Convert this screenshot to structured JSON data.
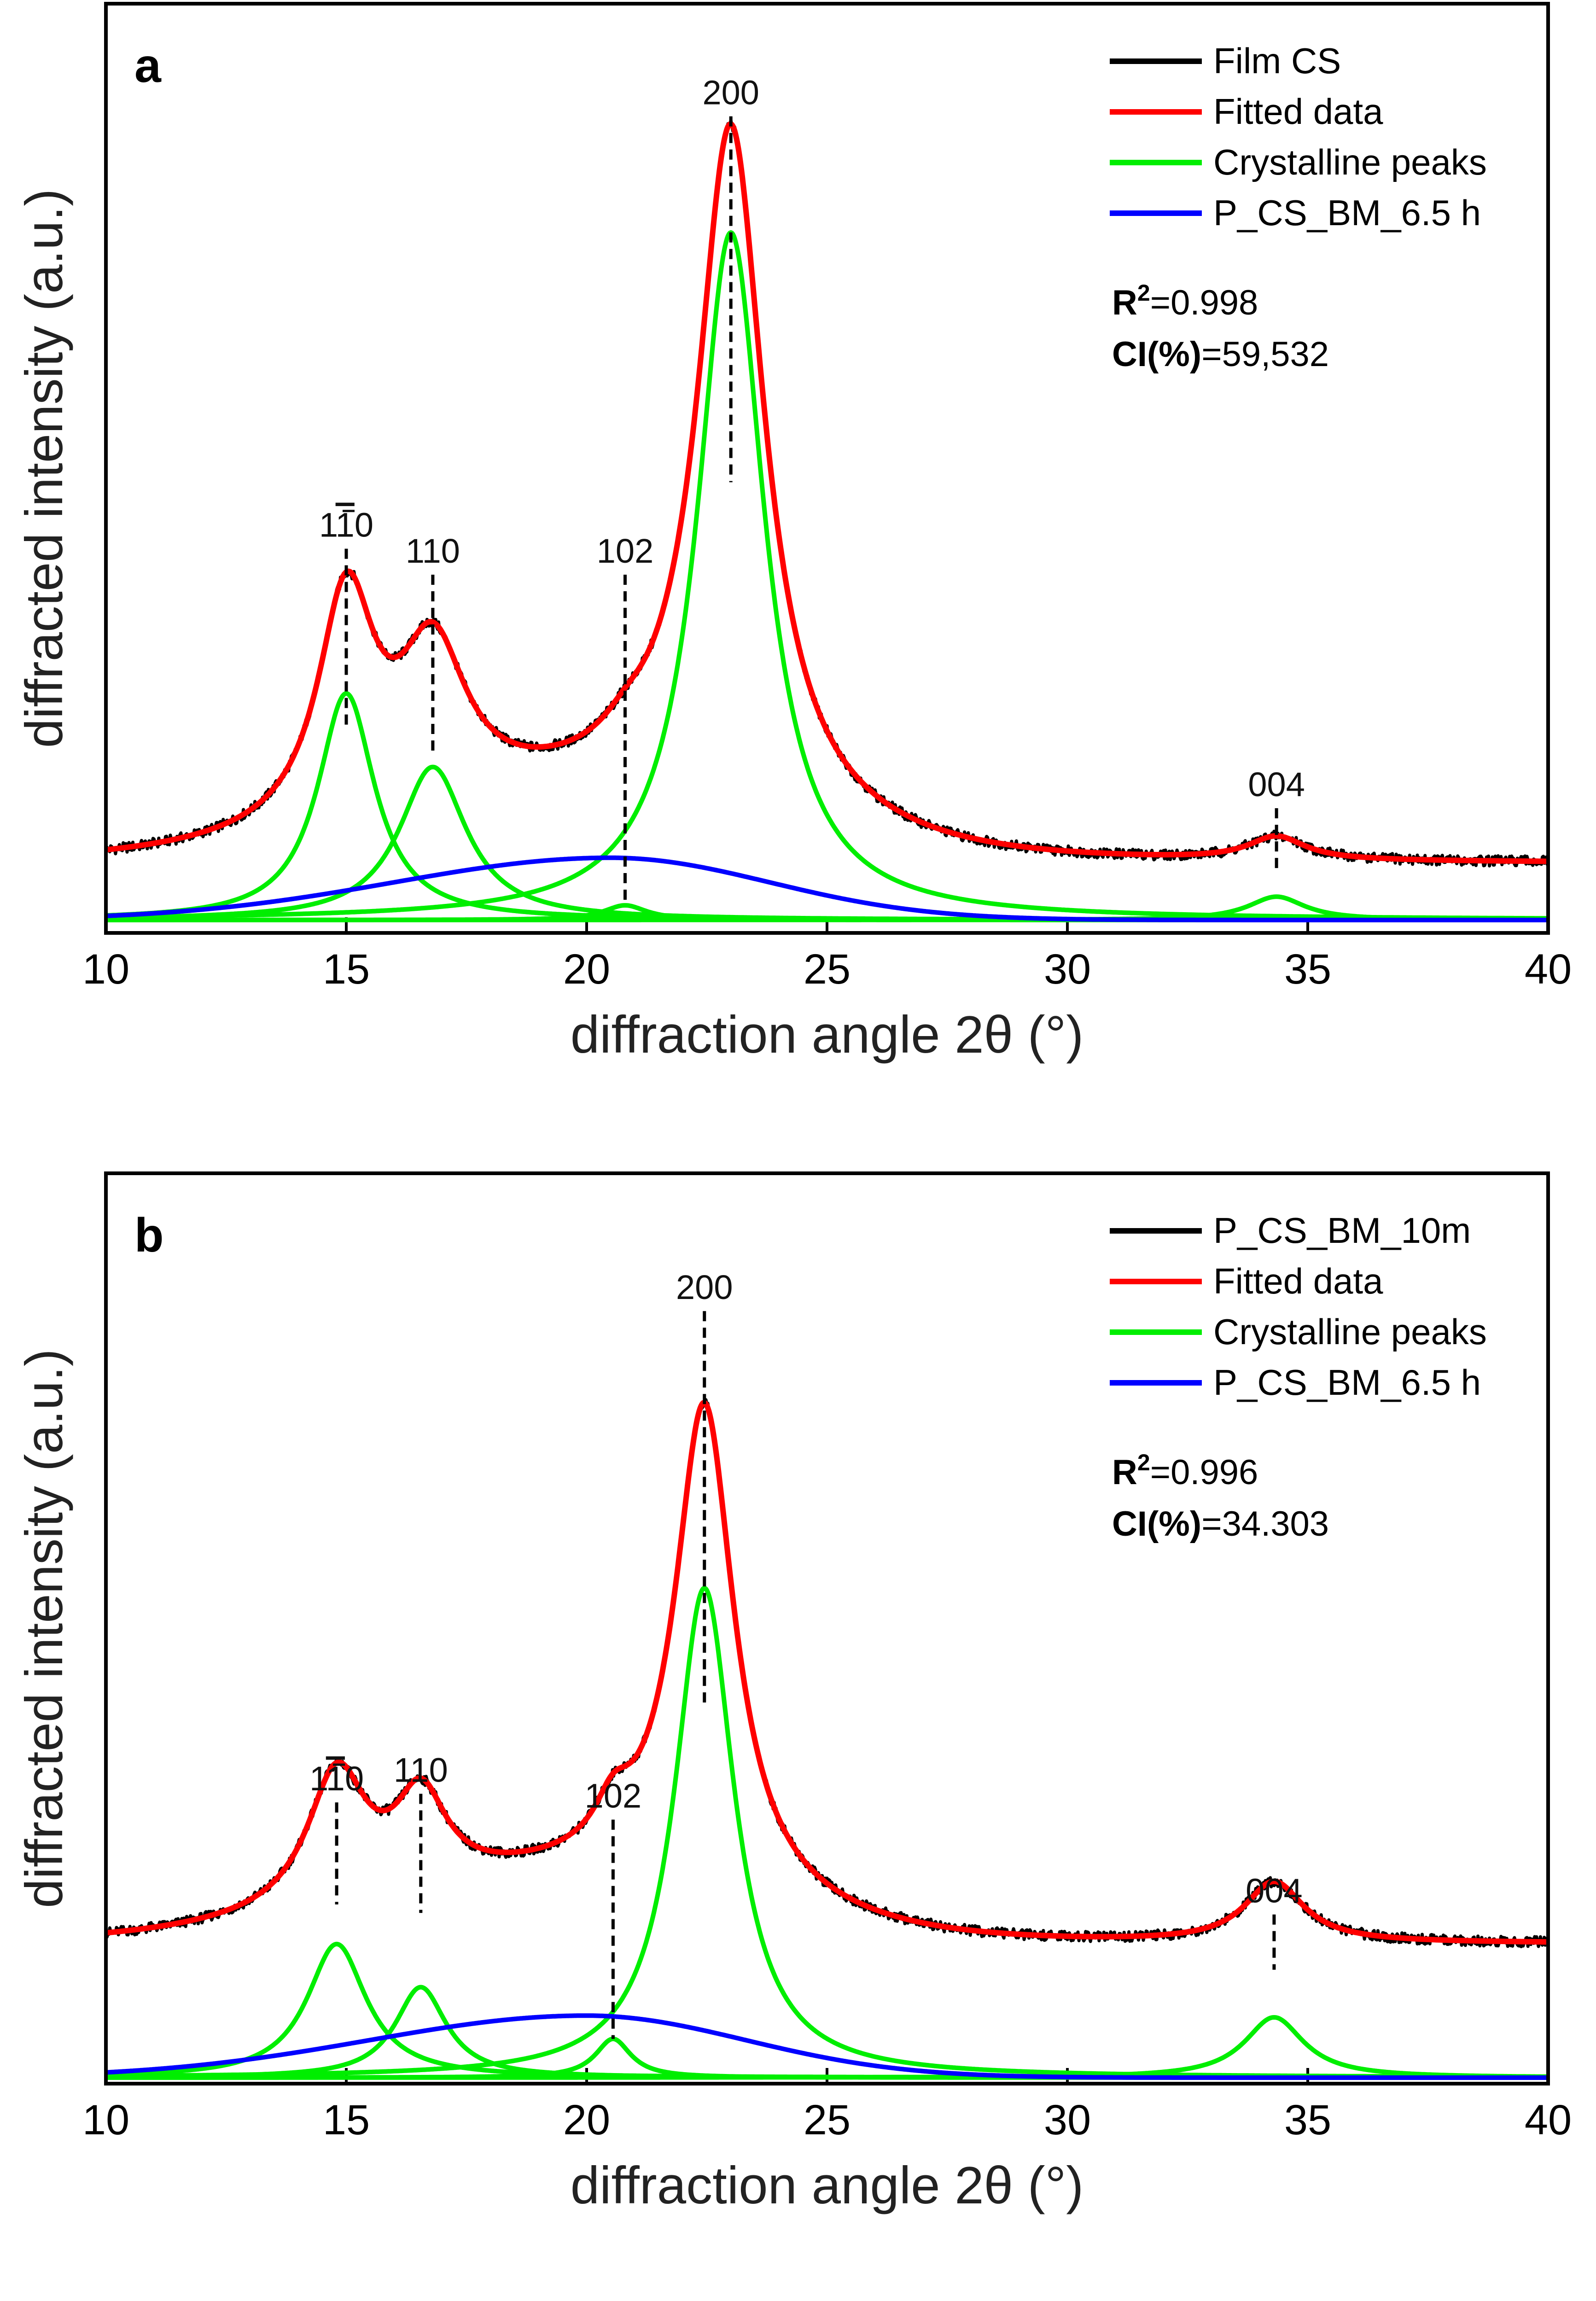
{
  "chart_data": [
    {
      "type": "line",
      "panel_label": "a",
      "xlabel": "diffraction angle 2θ (°)",
      "ylabel": "diffracted intensity (a.u.)",
      "xlim": [
        10,
        40
      ],
      "ylim": [
        0,
        1.0
      ],
      "xticks": [
        10,
        15,
        20,
        25,
        30,
        35,
        40
      ],
      "xtick_labels": [
        "10",
        "15",
        "20",
        "25",
        "30",
        "35",
        "40"
      ],
      "y_ticks_shown": false,
      "grid": false,
      "legend_position": "top-right",
      "legend": [
        {
          "label": "Film CS",
          "color": "#000000"
        },
        {
          "label": "Fitted data",
          "color": "#ff0000"
        },
        {
          "label": "Crystalline peaks",
          "color": "#00ee00"
        },
        {
          "label": "P_CS_BM_6.5 h",
          "color": "#0000ff"
        }
      ],
      "stats": {
        "r2_label": "R",
        "r2_sup": "2",
        "r2_value": "=0.998",
        "ci_label": "CI(%)",
        "ci_value": "=59,532"
      },
      "baseline": 0.065,
      "crystalline_peaks": [
        {
          "center": 15.0,
          "height": 0.262,
          "width": 0.72
        },
        {
          "center": 16.8,
          "height": 0.177,
          "width": 0.85
        },
        {
          "center": 20.8,
          "height": 0.017,
          "width": 0.55
        },
        {
          "center": 23.0,
          "height": 0.795,
          "width": 0.85
        },
        {
          "center": 34.35,
          "height": 0.027,
          "width": 0.72
        }
      ],
      "amorphous": {
        "center": 20.5,
        "height": 0.072,
        "width_left": 4.5,
        "width_right": 3.3
      },
      "series": [
        {
          "name": "Film CS",
          "color": "#000000",
          "kind": "measured"
        },
        {
          "name": "Fitted data",
          "color": "#ff0000",
          "kind": "fit"
        },
        {
          "name": "Crystalline peaks",
          "color": "#00ee00",
          "kind": "peaks"
        },
        {
          "name": "P_CS_BM_6.5 h",
          "color": "#0000ff",
          "kind": "amorphous"
        }
      ],
      "peak_labels": [
        {
          "text": "1",
          "bar": "1",
          "rest": "0",
          "x": 15.0,
          "y_top": 0.44
        },
        {
          "text": "110",
          "x": 16.8,
          "y_top": 0.41
        },
        {
          "text": "102",
          "x": 20.8,
          "y_top": 0.41
        },
        {
          "text": "200",
          "x": 23.0,
          "y_top": 0.94
        },
        {
          "text": "004",
          "x": 34.35,
          "y_top": 0.14
        }
      ]
    },
    {
      "type": "line",
      "panel_label": "b",
      "xlabel": "diffraction angle 2θ (°)",
      "ylabel": "diffracted intensity (a.u.)",
      "xlim": [
        10,
        40
      ],
      "ylim": [
        0,
        1.0
      ],
      "xticks": [
        10,
        15,
        20,
        25,
        30,
        35,
        40
      ],
      "xtick_labels": [
        "10",
        "15",
        "20",
        "25",
        "30",
        "35",
        "40"
      ],
      "y_ticks_shown": false,
      "grid": false,
      "legend_position": "top-right",
      "legend": [
        {
          "label": "P_CS_BM_10m",
          "color": "#000000"
        },
        {
          "label": "Fitted data",
          "color": "#ff0000"
        },
        {
          "label": "Crystalline peaks",
          "color": "#00ee00"
        },
        {
          "label": "P_CS_BM_6.5 h",
          "color": "#0000ff"
        }
      ],
      "stats": {
        "r2_label": "R",
        "r2_sup": "2",
        "r2_value": "=0.996",
        "ci_label": "CI(%)",
        "ci_value": "=34.303"
      },
      "baseline": 0.155,
      "crystalline_peaks": [
        {
          "center": 14.8,
          "height": 0.155,
          "width": 0.75
        },
        {
          "center": 16.55,
          "height": 0.105,
          "width": 0.65
        },
        {
          "center": 20.55,
          "height": 0.045,
          "width": 0.45
        },
        {
          "center": 22.45,
          "height": 0.568,
          "width": 0.75
        },
        {
          "center": 34.3,
          "height": 0.07,
          "width": 0.75
        }
      ],
      "amorphous": {
        "center": 20.0,
        "height": 0.072,
        "width_left": 4.5,
        "width_right": 3.3
      },
      "series": [
        {
          "name": "P_CS_BM_10m",
          "color": "#000000",
          "kind": "measured"
        },
        {
          "name": "Fitted data",
          "color": "#ff0000",
          "kind": "fit"
        },
        {
          "name": "Crystalline peaks",
          "color": "#00ee00",
          "kind": "peaks"
        },
        {
          "name": "P_CS_BM_6.5 h",
          "color": "#0000ff",
          "kind": "amorphous"
        }
      ],
      "peak_labels": [
        {
          "text": "1",
          "bar": "1",
          "rest": "0",
          "x": 14.8,
          "y_top": 0.33
        },
        {
          "text": "110",
          "x": 16.55,
          "y_top": 0.34
        },
        {
          "text": "102",
          "x": 20.55,
          "y_top": 0.31
        },
        {
          "text": "200",
          "x": 22.45,
          "y_top": 0.9
        },
        {
          "text": "004",
          "x": 34.3,
          "y_top": 0.2
        }
      ]
    }
  ]
}
